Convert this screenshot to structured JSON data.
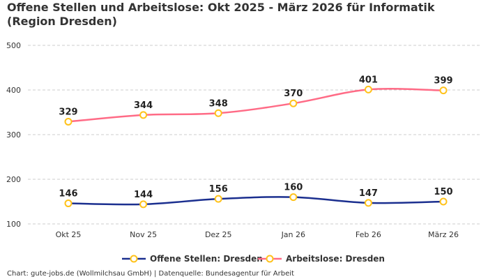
{
  "chart_data": {
    "type": "line",
    "title": "Offene Stellen und Arbeitslose: Okt 2025 - März 2026 für Informatik (Region Dresden)",
    "categories": [
      "Okt 25",
      "Nov 25",
      "Dez 25",
      "Jan 26",
      "Feb 26",
      "März 26"
    ],
    "ylim": [
      100,
      500
    ],
    "yticks": [
      100,
      200,
      300,
      400,
      500
    ],
    "grid": true,
    "legend_position": "bottom",
    "series": [
      {
        "name": "Offene Stellen: Dresden",
        "values": [
          146,
          144,
          156,
          160,
          147,
          150
        ],
        "color": "#1b2f8f"
      },
      {
        "name": "Arbeitslose: Dresden",
        "values": [
          329,
          344,
          348,
          370,
          401,
          399
        ],
        "color": "#ff6b86"
      }
    ],
    "marker_color": "#ffc21a",
    "footer": "Chart: gute-jobs.de (Wollmilchsau GmbH) | Datenquelle: Bundesagentur für Arbeit"
  }
}
